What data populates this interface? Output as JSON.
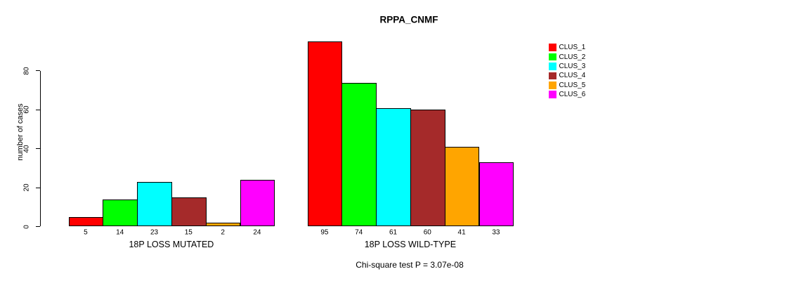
{
  "chart_data": {
    "type": "bar",
    "title": "RPPA_CNMF",
    "ylabel": "number of cases",
    "xlabel": "",
    "yticks": [
      0,
      20,
      40,
      60,
      80
    ],
    "ylim": [
      0,
      95
    ],
    "grid": false,
    "legend_position": "right",
    "categories": [
      "18P LOSS MUTATED",
      "18P LOSS WILD-TYPE"
    ],
    "series": [
      {
        "name": "CLUS_1",
        "color": "#ff0000",
        "values": [
          5,
          95
        ]
      },
      {
        "name": "CLUS_2",
        "color": "#00ff00",
        "values": [
          14,
          74
        ]
      },
      {
        "name": "CLUS_3",
        "color": "#00ffff",
        "values": [
          23,
          61
        ]
      },
      {
        "name": "CLUS_4",
        "color": "#a52a2a",
        "values": [
          15,
          60
        ]
      },
      {
        "name": "CLUS_5",
        "color": "#ffa500",
        "values": [
          2,
          41
        ]
      },
      {
        "name": "CLUS_6",
        "color": "#ff00ff",
        "values": [
          24,
          33
        ]
      }
    ],
    "bar_value_labels": true,
    "caption": "Chi-square test P = 3.07e-08"
  }
}
